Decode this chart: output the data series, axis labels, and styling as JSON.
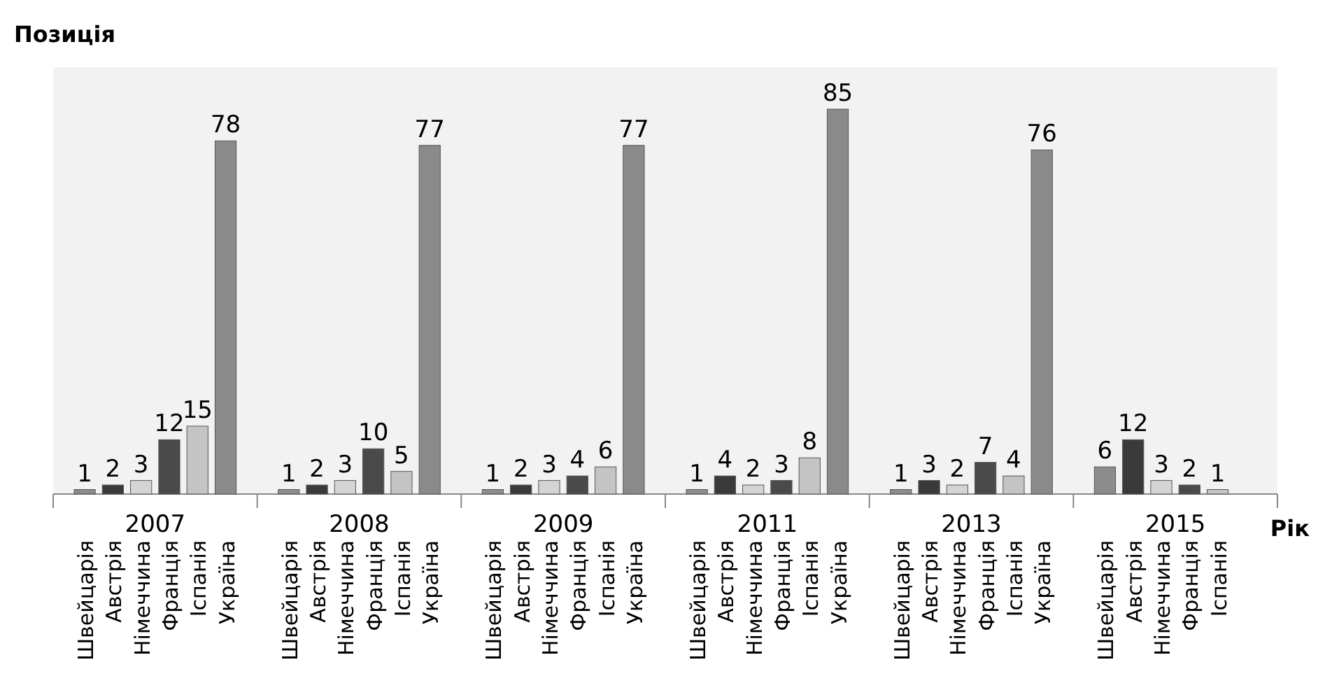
{
  "chart_data": {
    "type": "bar",
    "ylabel": "Позиція",
    "xlabel": "Рік",
    "categories": [
      "2007",
      "2008",
      "2009",
      "2011",
      "2013",
      "2015"
    ],
    "data_labels": true,
    "series": [
      {
        "name": "Швейцарія",
        "color": "#8c8c8c",
        "values": [
          1,
          1,
          1,
          1,
          1,
          6
        ]
      },
      {
        "name": "Австрія",
        "color": "#3a3a3a",
        "values": [
          2,
          2,
          2,
          4,
          3,
          12
        ]
      },
      {
        "name": "Німеччина",
        "color": "#d4d4d4",
        "values": [
          3,
          3,
          3,
          2,
          2,
          3
        ]
      },
      {
        "name": "Франція",
        "color": "#4a4a4a",
        "values": [
          12,
          10,
          4,
          3,
          7,
          2
        ]
      },
      {
        "name": "Іспанія",
        "color": "#c4c4c4",
        "values": [
          15,
          5,
          6,
          8,
          4,
          1
        ]
      },
      {
        "name": "Україна",
        "color": "#8a8a8a",
        "values": [
          78,
          77,
          77,
          85,
          76,
          null
        ]
      }
    ]
  }
}
